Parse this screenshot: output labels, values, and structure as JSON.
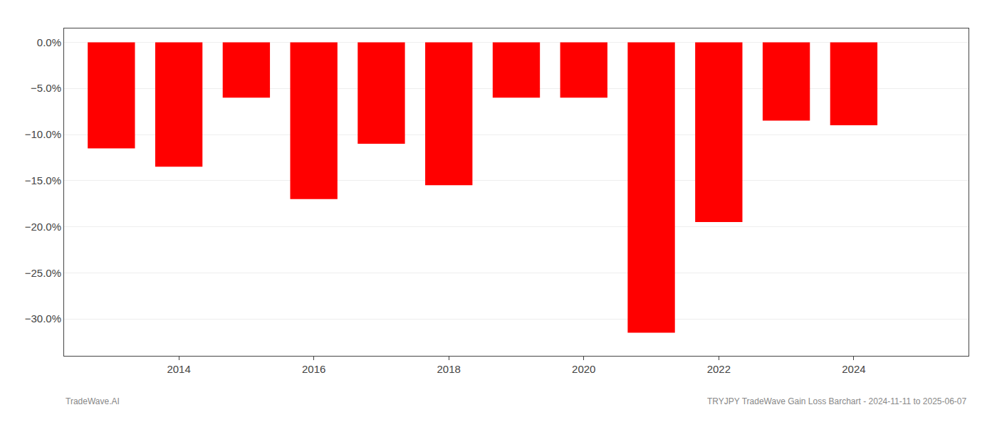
{
  "chart_data": {
    "type": "bar",
    "x": [
      2013,
      2014,
      2015,
      2016,
      2017,
      2018,
      2019,
      2020,
      2021,
      2022,
      2023,
      2024
    ],
    "values": [
      -11.5,
      -13.5,
      -6.0,
      -17.0,
      -11.0,
      -15.5,
      -6.0,
      -6.0,
      -31.5,
      -19.5,
      -8.5,
      -9.0
    ],
    "color": "#ff0000",
    "xlim": [
      2012.3,
      2025.7
    ],
    "xticks": [
      2014,
      2016,
      2018,
      2020,
      2022,
      2024
    ],
    "ylim": [
      -34,
      1.5
    ],
    "yticks": [
      {
        "value": 0.0,
        "label": "0.0%"
      },
      {
        "value": -5.0,
        "label": "−5.0%"
      },
      {
        "value": -10.0,
        "label": "−10.0%"
      },
      {
        "value": -15.0,
        "label": "−15.0%"
      },
      {
        "value": -20.0,
        "label": "−20.0%"
      },
      {
        "value": -25.0,
        "label": "−25.0%"
      },
      {
        "value": -30.0,
        "label": "−30.0%"
      }
    ],
    "grid": true,
    "annotations": [
      "TradeWave.AI",
      "TRYJPY TradeWave Gain Loss Barchart - 2024-11-11 to 2025-06-07"
    ]
  }
}
